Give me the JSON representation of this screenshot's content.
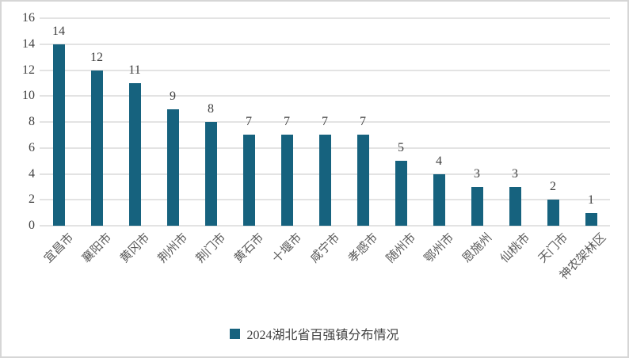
{
  "chart_data": {
    "type": "bar",
    "title": "",
    "xlabel": "",
    "ylabel": "",
    "categories": [
      "宜昌市",
      "襄阳市",
      "黄冈市",
      "荆州市",
      "荆门市",
      "黄石市",
      "十堰市",
      "咸宁市",
      "孝感市",
      "随州市",
      "鄂州市",
      "恩施州",
      "仙桃市",
      "天门市",
      "神农架林区"
    ],
    "values": [
      14,
      12,
      11,
      9,
      8,
      7,
      7,
      7,
      7,
      5,
      4,
      3,
      3,
      2,
      1
    ],
    "series_name": "2024湖北省百强镇分布情况",
    "ylim": [
      0,
      16
    ],
    "yticks": [
      0,
      2,
      4,
      6,
      8,
      10,
      12,
      14,
      16
    ],
    "grid": true,
    "data_labels": true,
    "legend_position": "bottom",
    "colors": {
      "bar": "#16627E",
      "gridline": "#e3e3e3",
      "tick_label": "#3f3f3f",
      "category_label": "#595959",
      "frame_border": "#d6d6d6",
      "background": "#ffffff"
    }
  }
}
